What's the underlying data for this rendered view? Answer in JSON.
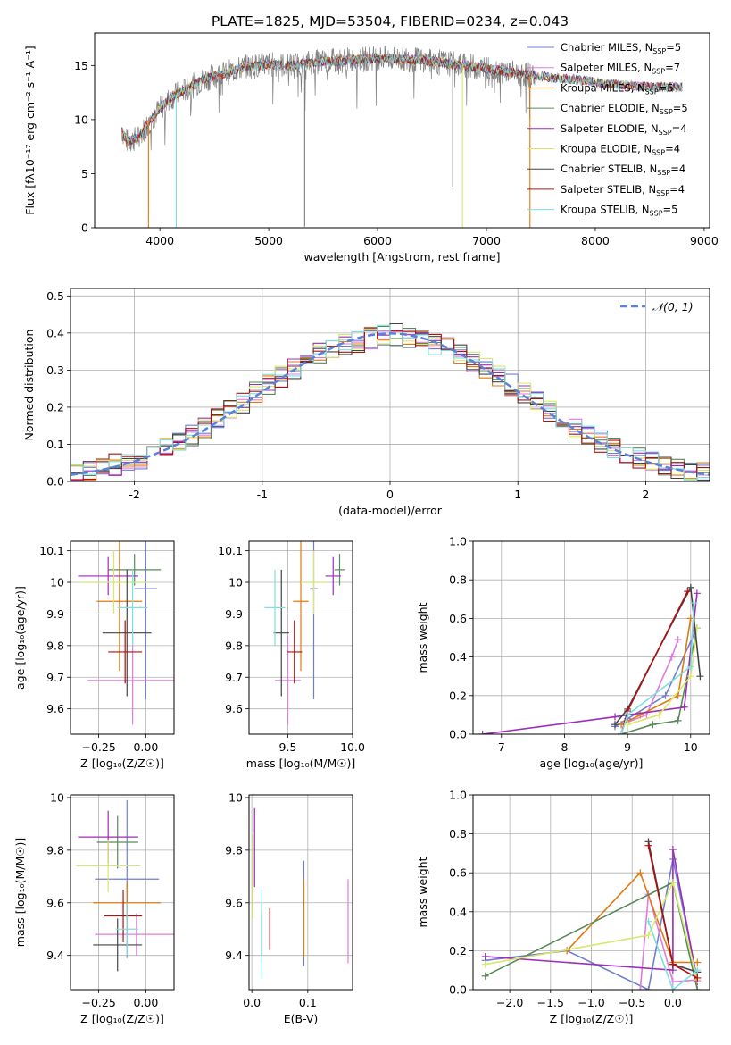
{
  "figure_title": "PLATE=1825, MJD=53504, FIBERID=0234, z=0.043",
  "colors": {
    "Chabrier MILES": "#6f7fd0",
    "Salpeter MILES": "#e07be0",
    "Kroupa MILES": "#e07a10",
    "Chabrier ELODIE": "#5a8a5a",
    "Salpeter ELODIE": "#9b2fb5",
    "Kroupa ELODIE": "#d7e86a",
    "Chabrier STELIB": "#444444",
    "Salpeter STELIB": "#b01010",
    "Kroupa STELIB": "#80dde0",
    "data": "#808080",
    "gauss": "#5a82d8"
  },
  "chart_data": [
    {
      "id": "spectrum",
      "type": "line",
      "title": "PLATE=1825, MJD=53504, FIBERID=0234, z=0.043",
      "xlabel": "wavelength [Angstrom, rest frame]",
      "ylabel": "Flux [fλ10⁻¹⁷ erg cm⁻² s⁻¹ A⁻¹]",
      "xlim": [
        3400,
        9050
      ],
      "ylim": [
        0,
        18
      ],
      "xticks": [
        4000,
        5000,
        6000,
        7000,
        8000,
        9000
      ],
      "yticks": [
        0,
        5,
        10,
        15
      ],
      "legend_position": "top-right",
      "legend": [
        {
          "name": "Chabrier MILES",
          "nssp": "5"
        },
        {
          "name": "Salpeter MILES",
          "nssp": "7"
        },
        {
          "name": "Kroupa MILES",
          "nssp": "5"
        },
        {
          "name": "Chabrier ELODIE",
          "nssp": "5"
        },
        {
          "name": "Salpeter ELODIE",
          "nssp": "4"
        },
        {
          "name": "Kroupa ELODIE",
          "nssp": "4"
        },
        {
          "name": "Chabrier STELIB",
          "nssp": "4"
        },
        {
          "name": "Salpeter STELIB",
          "nssp": "4"
        },
        {
          "name": "Kroupa STELIB",
          "nssp": "5"
        }
      ],
      "continuum": {
        "wavelength": [
          3650,
          3700,
          3800,
          3900,
          4000,
          4100,
          4200,
          4300,
          4400,
          4600,
          4800,
          5000,
          5200,
          5400,
          5600,
          6000,
          6400,
          6800,
          7200,
          7500,
          7800,
          8200,
          8600,
          8800
        ],
        "flux": [
          9.0,
          8.0,
          8.3,
          9.8,
          11.0,
          12.0,
          12.6,
          13.1,
          13.7,
          14.3,
          14.9,
          15.1,
          15.0,
          15.3,
          15.4,
          15.7,
          15.5,
          15.0,
          14.4,
          14.0,
          13.7,
          13.2,
          13.0,
          13.0
        ]
      },
      "drops": [
        {
          "series": "data",
          "wavelength": 5330,
          "flux": 0.1
        },
        {
          "series": "data",
          "wavelength": 6690,
          "flux": 3.8
        },
        {
          "series": "Kroupa MILES",
          "wavelength": 3895,
          "flux": 0.0
        },
        {
          "series": "Kroupa STELIB",
          "wavelength": 4150,
          "flux": 0.0
        },
        {
          "series": "Kroupa ELODIE",
          "wavelength": 6780,
          "flux": 0.0
        },
        {
          "series": "Kroupa MILES",
          "wavelength": 7400,
          "flux": 0.0
        }
      ]
    },
    {
      "id": "residuals",
      "type": "line",
      "xlabel": "(data-model)/error",
      "ylabel": "Normed distribution",
      "xlim": [
        -2.5,
        2.5
      ],
      "ylim": [
        0,
        0.52
      ],
      "xticks": [
        -2,
        -1,
        0,
        1,
        2
      ],
      "yticks": [
        0.0,
        0.1,
        0.2,
        0.3,
        0.4,
        0.5
      ],
      "grid": true,
      "legend_position": "top-right",
      "legend": [
        "𝒩(0, 1)"
      ],
      "bin_width": 0.1,
      "note": "step histograms of residuals for each of the 9 models plus a dashed standard normal curve",
      "histogram_profile": {
        "x": [
          -2.5,
          -2.0,
          -1.5,
          -1.0,
          -0.5,
          0.0,
          0.5,
          1.0,
          1.5,
          2.0,
          2.5
        ],
        "y": [
          0.02,
          0.055,
          0.13,
          0.25,
          0.355,
          0.4,
          0.355,
          0.25,
          0.13,
          0.055,
          0.02
        ]
      }
    },
    {
      "id": "age_vs_Z",
      "type": "scatter",
      "xlabel": "Z [log₁₀(Z/Z☉)]",
      "ylabel": "age  [log₁₀(age/yr)]",
      "xlim": [
        -0.4,
        0.15
      ],
      "ylim": [
        9.52,
        10.13
      ],
      "xticks": [
        -0.25,
        0.0
      ],
      "xticklabels": [
        "−0.25",
        "0.00"
      ],
      "yticks": [
        9.6,
        9.7,
        9.8,
        9.9,
        10.0,
        10.1
      ],
      "grid": true,
      "points": [
        {
          "series": "Chabrier MILES",
          "x": 0.0,
          "xerr": 0.06,
          "y": 9.98,
          "yerr": 0.35
        },
        {
          "series": "Salpeter MILES",
          "x": -0.07,
          "xerr": 0.24,
          "y": 9.69,
          "yerr": 0.14
        },
        {
          "series": "Kroupa MILES",
          "x": -0.14,
          "xerr": 0.12,
          "y": 9.94,
          "yerr": 0.22
        },
        {
          "series": "Chabrier ELODIE",
          "x": -0.06,
          "xerr": 0.14,
          "y": 10.04,
          "yerr": 0.05
        },
        {
          "series": "Salpeter ELODIE",
          "x": -0.2,
          "xerr": 0.16,
          "y": 10.02,
          "yerr": 0.06
        },
        {
          "series": "Kroupa ELODIE",
          "x": -0.17,
          "xerr": 0.18,
          "y": 10.0,
          "yerr": 0.1
        },
        {
          "series": "Chabrier STELIB",
          "x": -0.1,
          "xerr": 0.13,
          "y": 9.84,
          "yerr": 0.2
        },
        {
          "series": "Salpeter STELIB",
          "x": -0.11,
          "xerr": 0.09,
          "y": 9.78,
          "yerr": 0.1
        },
        {
          "series": "Kroupa STELIB",
          "x": -0.07,
          "xerr": 0.08,
          "y": 9.92,
          "yerr": 0.12
        }
      ]
    },
    {
      "id": "age_vs_mass",
      "type": "scatter",
      "xlabel": "mass [log₁₀(M/M☉)]",
      "ylabel": "",
      "xlim": [
        9.2,
        10.0
      ],
      "ylim": [
        9.52,
        10.13
      ],
      "xticks": [
        9.5,
        10.0
      ],
      "xticklabels": [
        "9.5",
        "10.0"
      ],
      "yticks": [
        9.6,
        9.7,
        9.8,
        9.9,
        10.0,
        10.1
      ],
      "grid": true,
      "points": [
        {
          "series": "Chabrier MILES",
          "x": 9.7,
          "xerr": 0.03,
          "y": 9.98,
          "yerr": 0.35
        },
        {
          "series": "Salpeter MILES",
          "x": 9.5,
          "xerr": 0.1,
          "y": 9.69,
          "yerr": 0.14
        },
        {
          "series": "Kroupa MILES",
          "x": 9.6,
          "xerr": 0.06,
          "y": 9.94,
          "yerr": 0.22
        },
        {
          "series": "Chabrier ELODIE",
          "x": 9.9,
          "xerr": 0.04,
          "y": 10.04,
          "yerr": 0.05
        },
        {
          "series": "Salpeter ELODIE",
          "x": 9.85,
          "xerr": 0.06,
          "y": 10.02,
          "yerr": 0.06
        },
        {
          "series": "Kroupa ELODIE",
          "x": 9.7,
          "xerr": 0.1,
          "y": 10.0,
          "yerr": 0.1
        },
        {
          "series": "Chabrier STELIB",
          "x": 9.45,
          "xerr": 0.06,
          "y": 9.84,
          "yerr": 0.2
        },
        {
          "series": "Salpeter STELIB",
          "x": 9.55,
          "xerr": 0.06,
          "y": 9.78,
          "yerr": 0.1
        },
        {
          "series": "Kroupa STELIB",
          "x": 9.4,
          "xerr": 0.08,
          "y": 9.92,
          "yerr": 0.12
        }
      ]
    },
    {
      "id": "weight_vs_age",
      "type": "line",
      "xlabel": "age  [log₁₀(age/yr)]",
      "ylabel": "mass weight",
      "xlim": [
        6.55,
        10.3
      ],
      "ylim": [
        0,
        1.0
      ],
      "xticks": [
        7,
        8,
        9,
        10
      ],
      "yticks": [
        0.0,
        0.2,
        0.4,
        0.6,
        0.8,
        1.0
      ],
      "grid": true,
      "series": [
        {
          "name": "Chabrier MILES",
          "x": [
            8.8,
            9.0,
            9.6,
            10.1
          ],
          "y": [
            0.04,
            0.08,
            0.2,
            0.55
          ]
        },
        {
          "name": "Salpeter MILES",
          "x": [
            8.9,
            9.3,
            9.7,
            9.8
          ],
          "y": [
            0.05,
            0.1,
            0.4,
            0.49
          ]
        },
        {
          "name": "Kroupa MILES",
          "x": [
            8.9,
            9.2,
            9.8,
            10.0
          ],
          "y": [
            0.05,
            0.1,
            0.2,
            0.6
          ]
        },
        {
          "name": "Chabrier ELODIE",
          "x": [
            8.9,
            9.4,
            9.8,
            10.1
          ],
          "y": [
            0.0,
            0.05,
            0.07,
            0.55
          ]
        },
        {
          "name": "Salpeter ELODIE",
          "x": [
            6.7,
            8.8,
            9.0,
            9.9,
            10.1
          ],
          "y": [
            0.0,
            0.09,
            0.1,
            0.14,
            0.73
          ]
        },
        {
          "name": "Kroupa ELODIE",
          "x": [
            9.0,
            9.5,
            10.0,
            10.1
          ],
          "y": [
            0.05,
            0.1,
            0.3,
            0.55
          ]
        },
        {
          "name": "Chabrier STELIB",
          "x": [
            8.8,
            9.0,
            10.0,
            10.15
          ],
          "y": [
            0.05,
            0.13,
            0.76,
            0.3
          ]
        },
        {
          "name": "Salpeter STELIB",
          "x": [
            8.9,
            9.0,
            9.95
          ],
          "y": [
            0.0,
            0.12,
            0.74
          ]
        },
        {
          "name": "Kroupa STELIB",
          "x": [
            8.9,
            9.0,
            10.0,
            10.05
          ],
          "y": [
            0.0,
            0.1,
            0.35,
            0.68
          ]
        }
      ]
    },
    {
      "id": "mass_vs_Z",
      "type": "scatter",
      "xlabel": "Z [log₁₀(Z/Z☉)]",
      "ylabel": "mass [log₁₀(M/M☉)]",
      "xlim": [
        -0.4,
        0.15
      ],
      "ylim": [
        9.27,
        10.01
      ],
      "xticks": [
        -0.25,
        0.0
      ],
      "xticklabels": [
        "−0.25",
        "0.00"
      ],
      "yticks": [
        9.4,
        9.6,
        9.8,
        10.0
      ],
      "grid": true,
      "points": [
        {
          "series": "Chabrier MILES",
          "x": -0.1,
          "xerr": 0.17,
          "y": 9.69,
          "yerr": 0.3
        },
        {
          "series": "Salpeter MILES",
          "x": -0.05,
          "xerr": 0.22,
          "y": 9.48,
          "yerr": 0.08
        },
        {
          "series": "Kroupa MILES",
          "x": -0.1,
          "xerr": 0.18,
          "y": 9.6,
          "yerr": 0.08
        },
        {
          "series": "Chabrier ELODIE",
          "x": -0.15,
          "xerr": 0.11,
          "y": 9.83,
          "yerr": 0.1
        },
        {
          "series": "Salpeter ELODIE",
          "x": -0.2,
          "xerr": 0.16,
          "y": 9.85,
          "yerr": 0.1
        },
        {
          "series": "Kroupa ELODIE",
          "x": -0.2,
          "xerr": 0.17,
          "y": 9.74,
          "yerr": 0.1
        },
        {
          "series": "Chabrier STELIB",
          "x": -0.15,
          "xerr": 0.13,
          "y": 9.44,
          "yerr": 0.1
        },
        {
          "series": "Salpeter STELIB",
          "x": -0.12,
          "xerr": 0.1,
          "y": 9.55,
          "yerr": 0.1
        },
        {
          "series": "Kroupa STELIB",
          "x": -0.1,
          "xerr": 0.06,
          "y": 9.5,
          "yerr": 0.1
        }
      ]
    },
    {
      "id": "mass_vs_EBV",
      "type": "scatter",
      "xlabel": "E(B-V)",
      "ylabel": "",
      "xlim": [
        -0.005,
        0.18
      ],
      "ylim": [
        9.27,
        10.01
      ],
      "xticks": [
        0.0,
        0.1
      ],
      "xticklabels": [
        "0.0",
        "0.1"
      ],
      "yticks": [
        9.4,
        9.6,
        9.8,
        10.0
      ],
      "grid": true,
      "points": [
        {
          "series": "Chabrier MILES",
          "x": 0.093,
          "y": 9.56,
          "yerr": 0.2
        },
        {
          "series": "Salpeter MILES",
          "x": 0.172,
          "y": 9.53,
          "yerr": 0.16
        },
        {
          "series": "Kroupa MILES",
          "x": 0.093,
          "y": 9.54,
          "yerr": 0.15
        },
        {
          "series": "Chabrier ELODIE",
          "x": 0.018,
          "y": 9.47,
          "yerr": 0.1
        },
        {
          "series": "Salpeter ELODIE",
          "x": 0.005,
          "y": 9.81,
          "yerr": 0.15
        },
        {
          "series": "Kroupa ELODIE",
          "x": 0.002,
          "y": 9.7,
          "yerr": 0.16
        },
        {
          "series": "Chabrier STELIB",
          "x": 0.018,
          "y": 9.5,
          "yerr": 0.1
        },
        {
          "series": "Salpeter STELIB",
          "x": 0.032,
          "y": 9.5,
          "yerr": 0.08
        },
        {
          "series": "Kroupa STELIB",
          "x": 0.018,
          "y": 9.48,
          "yerr": 0.17
        }
      ]
    },
    {
      "id": "weight_vs_Z",
      "type": "line",
      "xlabel": "Z [log₁₀(Z/Z☉)]",
      "ylabel": "mass weight",
      "xlim": [
        -2.45,
        0.45
      ],
      "ylim": [
        0,
        1.0
      ],
      "xticks": [
        -2.0,
        -1.5,
        -1.0,
        -0.5,
        0.0
      ],
      "xticklabels": [
        "−2.0",
        "−1.5",
        "−1.0",
        "−0.5",
        "0.0"
      ],
      "yticks": [
        0.0,
        0.2,
        0.4,
        0.6,
        0.8,
        1.0
      ],
      "grid": true,
      "series": [
        {
          "name": "Chabrier MILES",
          "x": [
            -2.3,
            -1.3,
            -0.3,
            0.0,
            0.3
          ],
          "y": [
            0.15,
            0.2,
            0.0,
            0.67,
            0.05
          ]
        },
        {
          "name": "Salpeter MILES",
          "x": [
            -0.4,
            -0.3,
            0.0,
            0.3
          ],
          "y": [
            0.0,
            0.49,
            0.04,
            0.05
          ]
        },
        {
          "name": "Kroupa MILES",
          "x": [
            -1.3,
            -0.4,
            0.0,
            0.3
          ],
          "y": [
            0.2,
            0.6,
            0.14,
            0.14
          ]
        },
        {
          "name": "Chabrier ELODIE",
          "x": [
            -2.3,
            0.0,
            0.3
          ],
          "y": [
            0.07,
            0.55,
            0.0
          ]
        },
        {
          "name": "Salpeter ELODIE",
          "x": [
            -2.3,
            0.0,
            0.0,
            0.3
          ],
          "y": [
            0.17,
            0.1,
            0.72,
            0.04
          ]
        },
        {
          "name": "Kroupa ELODIE",
          "x": [
            -2.3,
            -0.3,
            0.0,
            0.3
          ],
          "y": [
            0.13,
            0.28,
            0.55,
            0.05
          ]
        },
        {
          "name": "Chabrier STELIB",
          "x": [
            -0.3,
            0.0,
            0.3
          ],
          "y": [
            0.76,
            0.13,
            0.09
          ]
        },
        {
          "name": "Salpeter STELIB",
          "x": [
            -0.3,
            0.0,
            0.3
          ],
          "y": [
            0.74,
            0.13,
            0.06
          ]
        },
        {
          "name": "Kroupa STELIB",
          "x": [
            -0.3,
            0.0,
            0.3
          ],
          "y": [
            0.35,
            0.0,
            0.1
          ]
        }
      ]
    }
  ]
}
